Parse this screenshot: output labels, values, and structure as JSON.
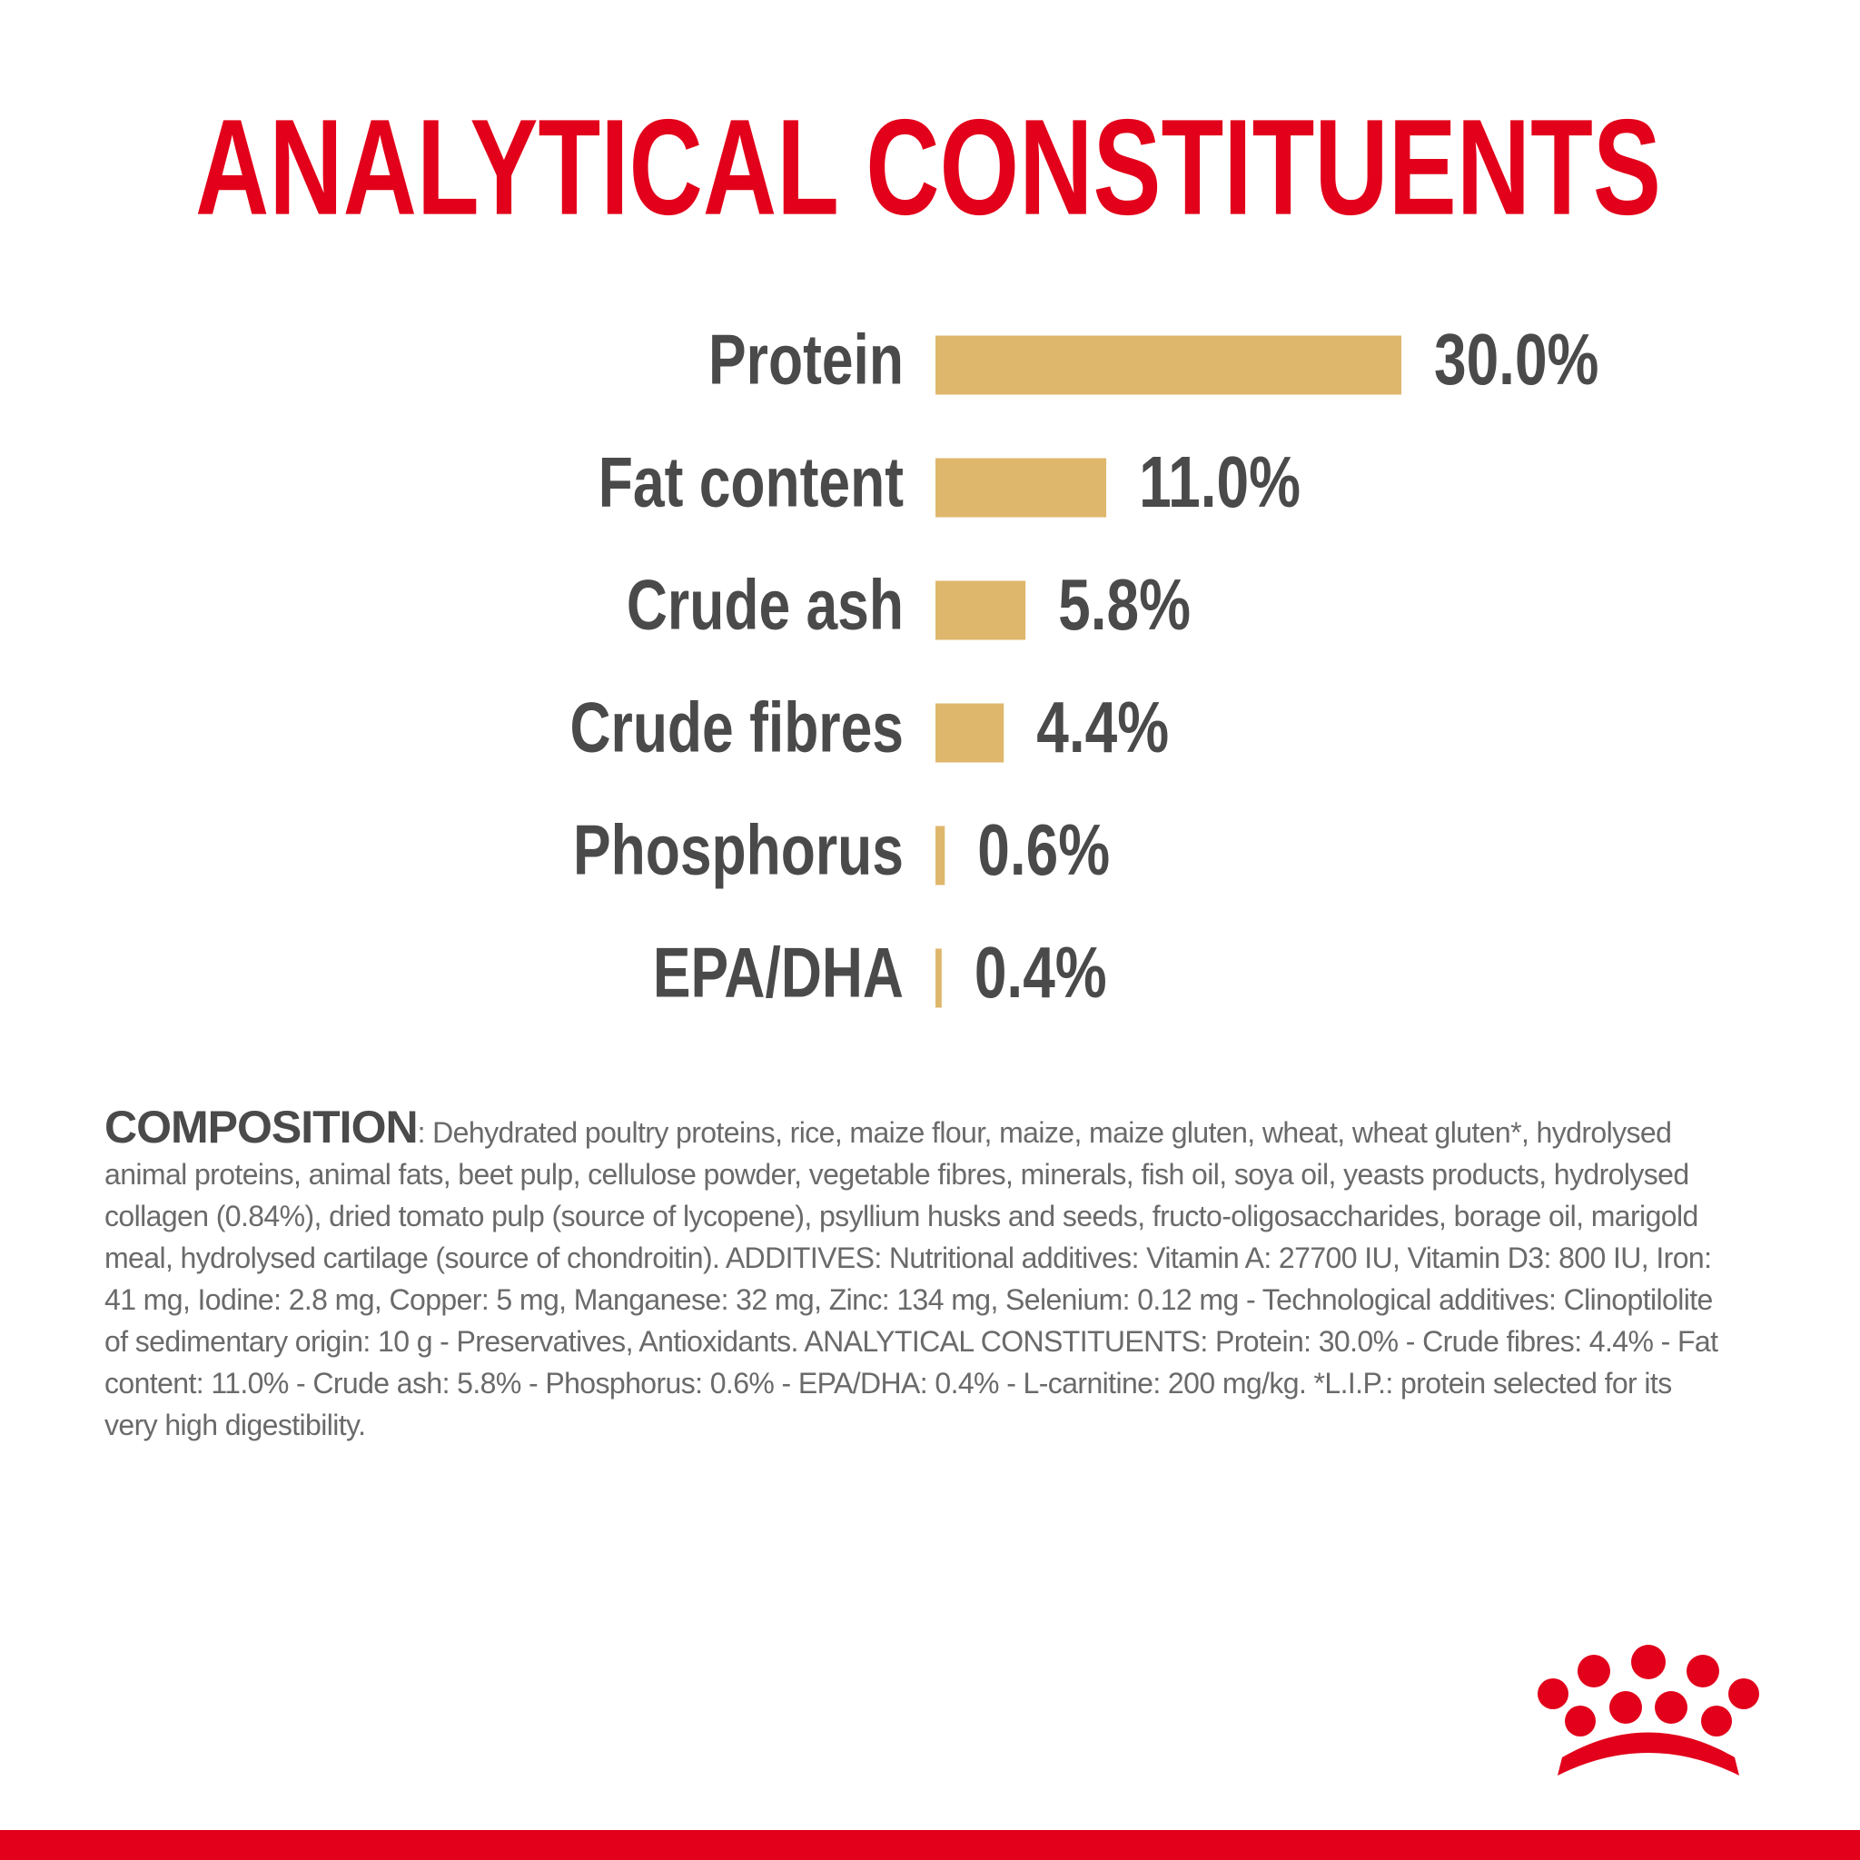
{
  "chart_data": {
    "type": "hbar",
    "title": "ANALYTICAL CONSTITUENTS",
    "categories": [
      "Protein",
      "Fat content",
      "Crude ash",
      "Crude fibres",
      "Phosphorus",
      "EPA/DHA"
    ],
    "values": [
      30.0,
      11.0,
      5.8,
      4.4,
      0.6,
      0.4
    ],
    "value_labels": [
      "30.0%",
      "11.0%",
      "5.8%",
      "4.4%",
      "0.6%",
      "0.4%"
    ],
    "color": "#dfb76c"
  },
  "composition": {
    "label": "COMPOSITION",
    "text": ": Dehydrated poultry proteins, rice, maize flour, maize, maize gluten, wheat, wheat gluten*, hydrolysed animal proteins, animal fats, beet pulp, cellulose powder, vegetable fibres, minerals, fish oil, soya oil, yeasts products, hydrolysed collagen (0.84%), dried tomato pulp (source of lycopene), psyllium husks and seeds, fructo-oligosaccharides, borage oil, marigold meal, hydrolysed cartilage (source of chondroitin). ADDITIVES: Nutritional additives: Vitamin A: 27700 IU, Vitamin D3: 800 IU, Iron: 41 mg, Iodine: 2.8 mg, Copper: 5 mg, Manganese: 32 mg, Zinc: 134 mg, Selenium: 0.12 mg - Technological additives: Clinoptilolite of sedimentary origin: 10 g - Preservatives, Antioxidants. ANALYTICAL CONSTITUENTS: Protein: 30.0% - Crude fibres: 4.4% - Fat content: 11.0% - Crude ash: 5.8% - Phosphorus: 0.6% - EPA/DHA: 0.4% - L-carnitine: 200 mg/kg. *L.I.P.:  protein selected for its very high digestibility."
  }
}
